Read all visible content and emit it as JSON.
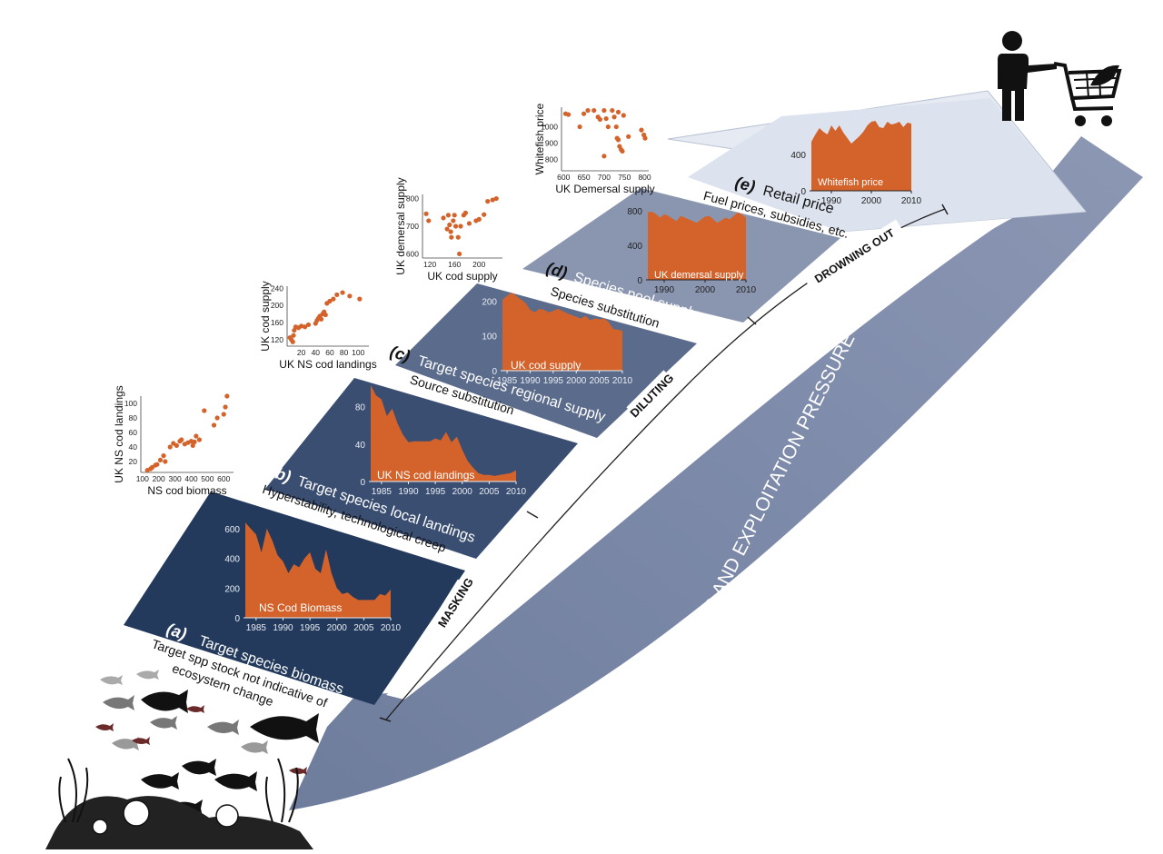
{
  "colors": {
    "orange": "#d4632b",
    "panel_a": "#233a5c",
    "panel_b": "#3a4e70",
    "panel_c": "#5a6a88",
    "panel_d": "#8994ad",
    "panel_e": "#dfe4ee",
    "arrow": "#7d8aa8"
  },
  "icons": [
    "person-shopping-cart-icon",
    "fish-silhouettes-icon",
    "coral-reef-icon"
  ],
  "steps": {
    "a": {
      "letter": "(a)",
      "title": "Target species biomass",
      "subtitle": "Target spp stock not indicative of",
      "subtitle2": "ecosystem change"
    },
    "b": {
      "letter": "(b)",
      "title": "Target species local landings",
      "subtitle": "Hyperstability, technological creep"
    },
    "c": {
      "letter": "(c)",
      "title": "Target species regional supply",
      "subtitle": "Source substitution"
    },
    "d": {
      "letter": "(d)",
      "title": "Species pool supply",
      "subtitle": "Species substitution"
    },
    "e": {
      "letter": "(e)",
      "title": "Retail price",
      "subtitle": "Fuel prices, subsidies, etc."
    }
  },
  "arrow_labels": {
    "masking": "MASKING",
    "diluting": "DILUTING",
    "drowning": "DROWNING OUT",
    "demand": "DEMAND AND EXPLOITATION PRESSURE"
  },
  "chart_data": [
    {
      "type": "area",
      "label": "NS Cod Biomass",
      "x": [
        1983,
        1984,
        1985,
        1986,
        1987,
        1988,
        1989,
        1990,
        1991,
        1992,
        1993,
        1994,
        1995,
        1996,
        1997,
        1998,
        1999,
        2000,
        2001,
        2002,
        2003,
        2004,
        2005,
        2006,
        2007,
        2008,
        2009,
        2010
      ],
      "y": [
        640,
        600,
        560,
        440,
        600,
        520,
        420,
        380,
        300,
        360,
        340,
        400,
        440,
        330,
        300,
        460,
        300,
        200,
        160,
        170,
        140,
        120,
        120,
        120,
        120,
        160,
        150,
        190
      ],
      "xticks": [
        1985,
        1990,
        1995,
        2000,
        2005,
        2010
      ],
      "yticks": [
        0,
        200,
        400,
        600
      ],
      "ylim": [
        0,
        660
      ]
    },
    {
      "type": "area",
      "label": "UK NS cod landings",
      "x": [
        1983,
        1984,
        1985,
        1986,
        1987,
        1988,
        1989,
        1990,
        1991,
        1992,
        1993,
        1994,
        1995,
        1996,
        1997,
        1998,
        1999,
        2000,
        2001,
        2002,
        2003,
        2004,
        2005,
        2006,
        2007,
        2008,
        2009,
        2010
      ],
      "y": [
        103,
        92,
        88,
        70,
        78,
        62,
        50,
        42,
        43,
        43,
        43,
        43,
        46,
        44,
        53,
        42,
        48,
        34,
        22,
        15,
        9,
        7,
        7,
        6,
        7,
        8,
        9,
        12
      ],
      "xticks": [
        1985,
        1990,
        1995,
        2000,
        2005,
        2010
      ],
      "yticks": [
        0,
        40,
        80
      ],
      "ylim": [
        0,
        105
      ]
    },
    {
      "type": "area",
      "label": "UK cod supply",
      "x": [
        1984,
        1985,
        1986,
        1987,
        1988,
        1989,
        1990,
        1991,
        1992,
        1993,
        1994,
        1995,
        1996,
        1997,
        1998,
        1999,
        2000,
        2001,
        2002,
        2003,
        2004,
        2005,
        2006,
        2007,
        2008,
        2009,
        2010
      ],
      "y": [
        205,
        215,
        225,
        215,
        205,
        195,
        175,
        168,
        178,
        175,
        168,
        172,
        178,
        172,
        165,
        160,
        155,
        150,
        158,
        145,
        150,
        148,
        150,
        140,
        120,
        118,
        115
      ],
      "xticks": [
        1985,
        1990,
        1995,
        2000,
        2005,
        2010
      ],
      "yticks": [
        0,
        100,
        200
      ],
      "ylim": [
        0,
        230
      ]
    },
    {
      "type": "area",
      "label": "UK demersal supply",
      "x": [
        1986,
        1987,
        1988,
        1989,
        1990,
        1991,
        1992,
        1993,
        1994,
        1995,
        1996,
        1997,
        1998,
        1999,
        2000,
        2001,
        2002,
        2003,
        2004,
        2005,
        2006,
        2007,
        2008,
        2009,
        2010
      ],
      "y": [
        780,
        790,
        760,
        720,
        760,
        740,
        710,
        680,
        740,
        720,
        700,
        680,
        660,
        700,
        730,
        740,
        700,
        660,
        690,
        720,
        700,
        740,
        780,
        760,
        720
      ],
      "xticks": [
        1990,
        2000,
        2010
      ],
      "yticks": [
        0,
        400,
        800
      ],
      "ylim": [
        0,
        820
      ]
    },
    {
      "type": "area",
      "label": "Whitefish price",
      "x": [
        1985,
        1986,
        1987,
        1988,
        1989,
        1990,
        1991,
        1992,
        1993,
        1994,
        1995,
        1996,
        1997,
        1998,
        1999,
        2000,
        2001,
        2002,
        2003,
        2004,
        2005,
        2006,
        2007,
        2008,
        2009,
        2010
      ],
      "y": [
        540,
        620,
        690,
        650,
        620,
        720,
        660,
        720,
        640,
        580,
        520,
        560,
        600,
        650,
        720,
        760,
        770,
        700,
        690,
        760,
        730,
        740,
        760,
        700,
        750,
        740
      ],
      "xticks": [
        1990,
        2000,
        2010
      ],
      "yticks": [
        0,
        400
      ],
      "ylim": [
        0,
        800
      ]
    }
  ],
  "scatter_data": [
    {
      "type": "scatter",
      "xlabel": "NS cod biomass",
      "ylabel": "UK NS cod landings",
      "xticks": [
        100,
        200,
        300,
        400,
        500,
        600
      ],
      "yticks": [
        20,
        40,
        60,
        80,
        100
      ],
      "xlim": [
        90,
        660
      ],
      "ylim": [
        5,
        110
      ],
      "points": [
        [
          130,
          8
        ],
        [
          150,
          10
        ],
        [
          160,
          12
        ],
        [
          180,
          15
        ],
        [
          190,
          16
        ],
        [
          210,
          22
        ],
        [
          230,
          28
        ],
        [
          240,
          20
        ],
        [
          270,
          40
        ],
        [
          290,
          45
        ],
        [
          310,
          42
        ],
        [
          330,
          48
        ],
        [
          340,
          50
        ],
        [
          360,
          44
        ],
        [
          380,
          46
        ],
        [
          400,
          48
        ],
        [
          410,
          42
        ],
        [
          420,
          47
        ],
        [
          430,
          55
        ],
        [
          450,
          50
        ],
        [
          480,
          90
        ],
        [
          540,
          70
        ],
        [
          560,
          80
        ],
        [
          600,
          85
        ],
        [
          610,
          95
        ],
        [
          620,
          110
        ]
      ]
    },
    {
      "type": "scatter",
      "xlabel": "UK NS cod landings",
      "ylabel": "UK cod supply",
      "xticks": [
        20,
        40,
        60,
        80,
        100
      ],
      "yticks": [
        120,
        160,
        200,
        240
      ],
      "xlim": [
        0,
        115
      ],
      "ylim": [
        105,
        245
      ],
      "points": [
        [
          4,
          125
        ],
        [
          6,
          120
        ],
        [
          8,
          115
        ],
        [
          9,
          130
        ],
        [
          10,
          142
        ],
        [
          12,
          150
        ],
        [
          16,
          148
        ],
        [
          20,
          152
        ],
        [
          25,
          150
        ],
        [
          30,
          155
        ],
        [
          40,
          158
        ],
        [
          42,
          165
        ],
        [
          44,
          170
        ],
        [
          46,
          175
        ],
        [
          48,
          168
        ],
        [
          50,
          180
        ],
        [
          52,
          185
        ],
        [
          54,
          178
        ],
        [
          56,
          205
        ],
        [
          60,
          210
        ],
        [
          65,
          215
        ],
        [
          70,
          225
        ],
        [
          78,
          230
        ],
        [
          88,
          222
        ],
        [
          102,
          215
        ]
      ]
    },
    {
      "type": "scatter",
      "xlabel": "UK cod supply",
      "ylabel": "UK demersal supply",
      "xticks": [
        120,
        160,
        200
      ],
      "yticks": [
        600,
        700,
        800
      ],
      "xlim": [
        108,
        238
      ],
      "ylim": [
        585,
        815
      ],
      "points": [
        [
          114,
          745
        ],
        [
          118,
          720
        ],
        [
          142,
          730
        ],
        [
          148,
          690
        ],
        [
          150,
          740
        ],
        [
          152,
          705
        ],
        [
          154,
          680
        ],
        [
          155,
          660
        ],
        [
          158,
          720
        ],
        [
          160,
          740
        ],
        [
          162,
          700
        ],
        [
          166,
          660
        ],
        [
          170,
          700
        ],
        [
          175,
          740
        ],
        [
          178,
          748
        ],
        [
          184,
          710
        ],
        [
          195,
          720
        ],
        [
          200,
          725
        ],
        [
          208,
          742
        ],
        [
          214,
          790
        ],
        [
          222,
          795
        ],
        [
          228,
          800
        ],
        [
          168,
          600
        ]
      ]
    },
    {
      "type": "scatter",
      "xlabel": "UK Demersal supply",
      "ylabel": "Whitefish price",
      "xticks": [
        600,
        650,
        700,
        750,
        800
      ],
      "yticks": [
        800,
        900,
        1000
      ],
      "xlim": [
        595,
        810
      ],
      "ylim": [
        730,
        1120
      ],
      "points": [
        [
          605,
          1080
        ],
        [
          612,
          1075
        ],
        [
          640,
          1000
        ],
        [
          650,
          1080
        ],
        [
          660,
          1100
        ],
        [
          675,
          1100
        ],
        [
          685,
          1060
        ],
        [
          690,
          1045
        ],
        [
          700,
          1100
        ],
        [
          705,
          1050
        ],
        [
          710,
          1000
        ],
        [
          720,
          1100
        ],
        [
          725,
          1060
        ],
        [
          730,
          1000
        ],
        [
          732,
          930
        ],
        [
          735,
          920
        ],
        [
          738,
          880
        ],
        [
          742,
          860
        ],
        [
          745,
          850
        ],
        [
          700,
          820
        ],
        [
          735,
          1090
        ],
        [
          748,
          1070
        ],
        [
          760,
          940
        ],
        [
          792,
          980
        ],
        [
          798,
          950
        ],
        [
          801,
          930
        ]
      ]
    }
  ]
}
